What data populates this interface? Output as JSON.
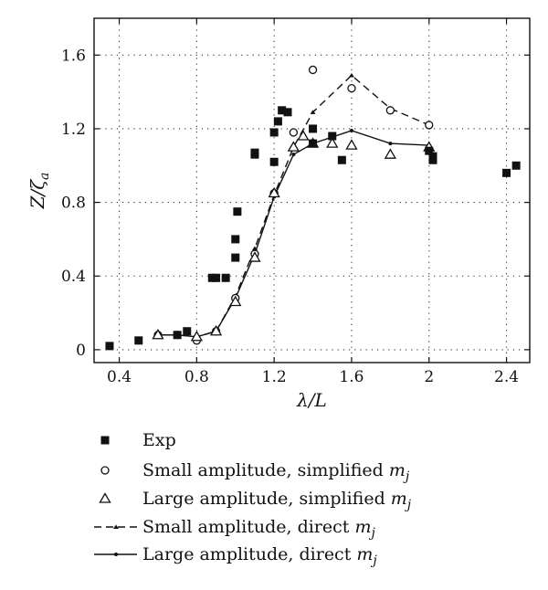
{
  "chart_data": {
    "type": "scatter",
    "xlabel": "λ/L",
    "ylabel_main": "Z/ζ",
    "ylabel_sub": "a",
    "xlim": [
      0.27,
      2.52
    ],
    "ylim": [
      -0.07,
      1.8
    ],
    "xticks": [
      0.4,
      0.8,
      1.2,
      1.6,
      2.0,
      2.4
    ],
    "xtick_labels": [
      "0.4",
      "0.8",
      "1.2",
      "1.6",
      "2",
      "2.4"
    ],
    "yticks": [
      0,
      0.4,
      0.8,
      1.2,
      1.6
    ],
    "ytick_labels": [
      "0",
      "0.4",
      "0.8",
      "1.2",
      "1.6"
    ],
    "grid": "dotted",
    "legend_position": "below",
    "series": [
      {
        "name": "Exp",
        "style": "filled-square",
        "points": [
          [
            0.35,
            0.02
          ],
          [
            0.5,
            0.05
          ],
          [
            0.7,
            0.08
          ],
          [
            0.75,
            0.1
          ],
          [
            0.88,
            0.39
          ],
          [
            0.9,
            0.39
          ],
          [
            0.95,
            0.39
          ],
          [
            1.0,
            0.5
          ],
          [
            1.0,
            0.6
          ],
          [
            1.01,
            0.75
          ],
          [
            1.1,
            1.06
          ],
          [
            1.1,
            1.07
          ],
          [
            1.2,
            1.02
          ],
          [
            1.2,
            1.18
          ],
          [
            1.22,
            1.24
          ],
          [
            1.24,
            1.3
          ],
          [
            1.27,
            1.29
          ],
          [
            1.4,
            1.2
          ],
          [
            1.4,
            1.12
          ],
          [
            1.5,
            1.16
          ],
          [
            1.55,
            1.03
          ],
          [
            2.0,
            1.08
          ],
          [
            2.02,
            1.05
          ],
          [
            2.02,
            1.03
          ],
          [
            2.4,
            0.96
          ],
          [
            2.45,
            1.0
          ]
        ]
      },
      {
        "name": "Small amplitude, simplified",
        "name_sub": "j",
        "style": "open-circle",
        "points": [
          [
            0.6,
            0.08
          ],
          [
            0.7,
            0.08
          ],
          [
            0.8,
            0.05
          ],
          [
            0.9,
            0.1
          ],
          [
            1.0,
            0.28
          ],
          [
            1.1,
            0.52
          ],
          [
            1.2,
            0.85
          ],
          [
            1.3,
            1.18
          ],
          [
            1.4,
            1.52
          ],
          [
            1.6,
            1.42
          ],
          [
            1.8,
            1.3
          ],
          [
            2.0,
            1.22
          ]
        ]
      },
      {
        "name": "Large amplitude, simplified",
        "name_sub": "j",
        "style": "open-triangle",
        "points": [
          [
            0.6,
            0.08
          ],
          [
            0.8,
            0.07
          ],
          [
            0.9,
            0.1
          ],
          [
            1.0,
            0.26
          ],
          [
            1.1,
            0.5
          ],
          [
            1.2,
            0.85
          ],
          [
            1.3,
            1.1
          ],
          [
            1.35,
            1.16
          ],
          [
            1.4,
            1.12
          ],
          [
            1.5,
            1.12
          ],
          [
            1.6,
            1.11
          ],
          [
            1.8,
            1.06
          ],
          [
            2.0,
            1.1
          ]
        ]
      },
      {
        "name": "Small amplitude, direct",
        "name_sub": "j",
        "style": "dashed-line",
        "points": [
          [
            0.6,
            0.08
          ],
          [
            0.7,
            0.08
          ],
          [
            0.8,
            0.07
          ],
          [
            0.9,
            0.1
          ],
          [
            1.0,
            0.29
          ],
          [
            1.1,
            0.55
          ],
          [
            1.2,
            0.84
          ],
          [
            1.3,
            1.1
          ],
          [
            1.4,
            1.29
          ],
          [
            1.6,
            1.49
          ],
          [
            1.8,
            1.31
          ],
          [
            2.0,
            1.22
          ]
        ]
      },
      {
        "name": "Large amplitude, direct",
        "name_sub": "j",
        "style": "solid-line",
        "points": [
          [
            0.6,
            0.08
          ],
          [
            0.7,
            0.08
          ],
          [
            0.8,
            0.07
          ],
          [
            0.9,
            0.1
          ],
          [
            1.0,
            0.28
          ],
          [
            1.1,
            0.52
          ],
          [
            1.2,
            0.83
          ],
          [
            1.3,
            1.06
          ],
          [
            1.4,
            1.12
          ],
          [
            1.6,
            1.19
          ],
          [
            1.8,
            1.12
          ],
          [
            2.0,
            1.11
          ]
        ]
      }
    ],
    "legend_symbol_text": "m",
    "legend_symbol_sub": "j"
  }
}
